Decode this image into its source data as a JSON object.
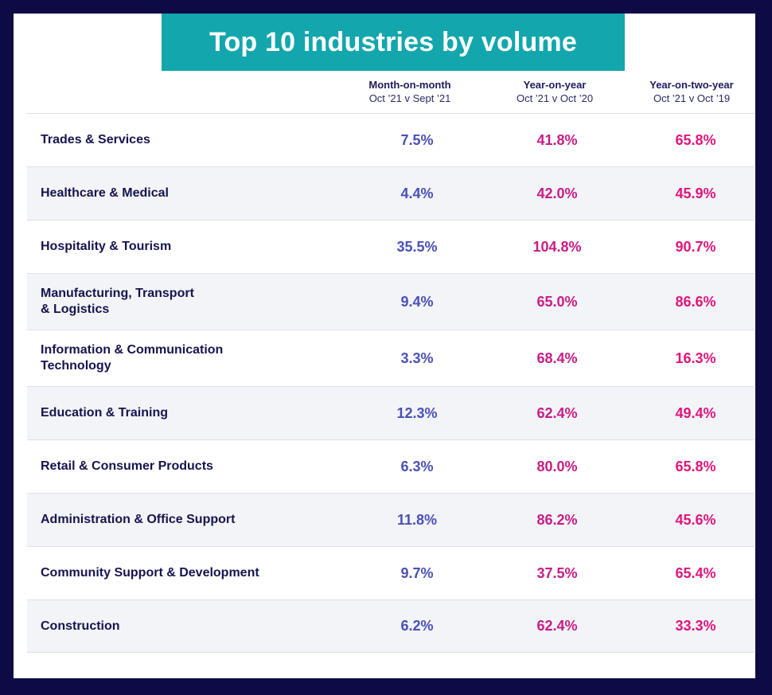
{
  "chart_data": {
    "type": "table",
    "title": "Top 10 industries by volume",
    "columns": [
      {
        "name": "Month-on-month",
        "sub": "Oct ’21 v Sept ’21"
      },
      {
        "name": "Year-on-year",
        "sub": "Oct ’21 v Oct ’20"
      },
      {
        "name": "Year-on-two-year",
        "sub": "Oct ’21 v Oct ’19"
      }
    ],
    "rows": [
      {
        "industry": "Trades & Services",
        "mom": "7.5%",
        "yoy": "41.8%",
        "yo2y": "65.8%"
      },
      {
        "industry": "Healthcare & Medical",
        "mom": "4.4%",
        "yoy": "42.0%",
        "yo2y": "45.9%"
      },
      {
        "industry": "Hospitality & Tourism",
        "mom": "35.5%",
        "yoy": "104.8%",
        "yo2y": "90.7%"
      },
      {
        "industry": "Manufacturing, Transport & Logistics",
        "mom": "9.4%",
        "yoy": "65.0%",
        "yo2y": "86.6%"
      },
      {
        "industry": "Information & Communication Technology",
        "mom": "3.3%",
        "yoy": "68.4%",
        "yo2y": "16.3%"
      },
      {
        "industry": "Education & Training",
        "mom": "12.3%",
        "yoy": "62.4%",
        "yo2y": "49.4%"
      },
      {
        "industry": "Retail & Consumer Products",
        "mom": "6.3%",
        "yoy": "80.0%",
        "yo2y": "65.8%"
      },
      {
        "industry": "Administration & Office Support",
        "mom": "11.8%",
        "yoy": "86.2%",
        "yo2y": "45.6%"
      },
      {
        "industry": "Community Support & Development",
        "mom": "9.7%",
        "yoy": "37.5%",
        "yo2y": "65.4%"
      },
      {
        "industry": "Construction",
        "mom": "6.2%",
        "yoy": "62.4%",
        "yo2y": "33.3%"
      }
    ],
    "colors": {
      "frame": "#0e0a45",
      "title_bg": "#13a6ad",
      "mom": "#4a50b5",
      "yoy": "#c71d86",
      "yo2y": "#e0157a"
    }
  }
}
